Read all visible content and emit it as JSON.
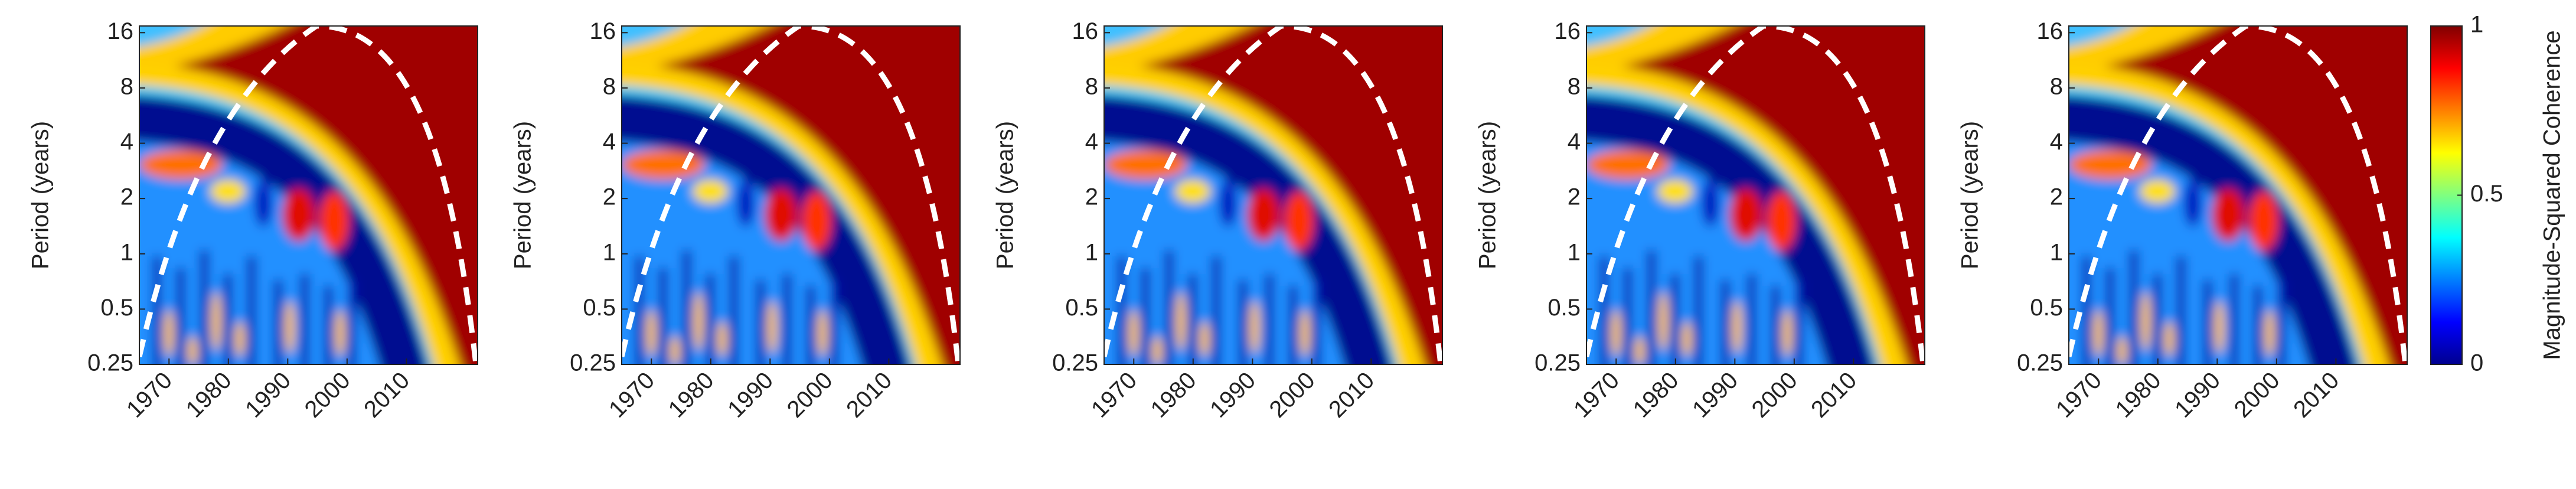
{
  "chart_data": [
    {
      "type": "heatmap",
      "ylabel": "Period (years)",
      "yscale": "log",
      "ylim": [
        0.25,
        17.4
      ],
      "yticks": [
        0.25,
        0.5,
        1,
        2,
        4,
        8,
        16
      ],
      "xlim": [
        1965,
        2022
      ],
      "xticks": [
        1970,
        1980,
        1990,
        2000,
        2010
      ]
    },
    {
      "type": "heatmap",
      "ylabel": "Period (years)",
      "yscale": "log",
      "ylim": [
        0.25,
        17.4
      ],
      "yticks": [
        0.25,
        0.5,
        1,
        2,
        4,
        8,
        16
      ],
      "xlim": [
        1965,
        2022
      ],
      "xticks": [
        1970,
        1980,
        1990,
        2000,
        2010
      ]
    },
    {
      "type": "heatmap",
      "ylabel": "Period (years)",
      "yscale": "log",
      "ylim": [
        0.25,
        17.4
      ],
      "yticks": [
        0.25,
        0.5,
        1,
        2,
        4,
        8,
        16
      ],
      "xlim": [
        1965,
        2022
      ],
      "xticks": [
        1970,
        1980,
        1990,
        2000,
        2010
      ]
    },
    {
      "type": "heatmap",
      "ylabel": "Period (years)",
      "yscale": "log",
      "ylim": [
        0.25,
        17.4
      ],
      "yticks": [
        0.25,
        0.5,
        1,
        2,
        4,
        8,
        16
      ],
      "xlim": [
        1965,
        2022
      ],
      "xticks": [
        1970,
        1980,
        1990,
        2000,
        2010
      ]
    },
    {
      "type": "heatmap",
      "ylabel": "Period (years)",
      "yscale": "log",
      "ylim": [
        0.25,
        17.4
      ],
      "yticks": [
        0.25,
        0.5,
        1,
        2,
        4,
        8,
        16
      ],
      "xlim": [
        1965,
        2022
      ],
      "xticks": [
        1970,
        1980,
        1990,
        2000,
        2010
      ],
      "colorbar": {
        "label": "Magnitude-Squared Coherence",
        "colormap": "jet",
        "lim": [
          0,
          1
        ],
        "ticks": [
          0,
          0.5,
          1
        ]
      }
    }
  ]
}
